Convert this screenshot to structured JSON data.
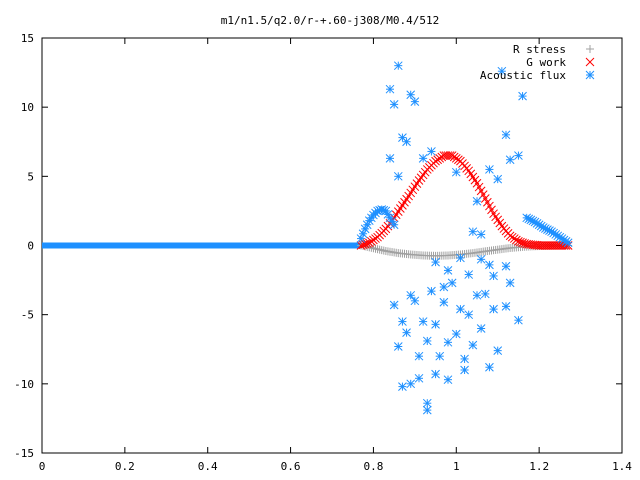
{
  "chart_data": {
    "type": "scatter",
    "title": "m1/n1.5/q2.0/r-+.60-j308/M0.4/512",
    "xlabel": "",
    "ylabel": "",
    "xlim": [
      0,
      1.4
    ],
    "ylim": [
      -15,
      15
    ],
    "x_ticks": [
      "0",
      "0.2",
      "0.4",
      "0.6",
      "0.8",
      "1",
      "1.2",
      "1.4"
    ],
    "y_ticks": [
      "15",
      "10",
      "5",
      "0",
      "-5",
      "-10",
      "-15"
    ],
    "legend_position": "top-right",
    "grid": false,
    "series": [
      {
        "name": "R stress",
        "marker": "plus",
        "color": "#a0a0a0",
        "points": [
          [
            0.77,
            0.0
          ],
          [
            0.8,
            -0.2
          ],
          [
            0.83,
            -0.4
          ],
          [
            0.86,
            -0.55
          ],
          [
            0.89,
            -0.65
          ],
          [
            0.92,
            -0.72
          ],
          [
            0.95,
            -0.75
          ],
          [
            0.98,
            -0.72
          ],
          [
            1.01,
            -0.65
          ],
          [
            1.04,
            -0.55
          ],
          [
            1.07,
            -0.42
          ],
          [
            1.1,
            -0.3
          ],
          [
            1.13,
            -0.18
          ],
          [
            1.16,
            -0.1
          ],
          [
            1.19,
            -0.05
          ],
          [
            1.22,
            -0.02
          ],
          [
            1.25,
            0.0
          ],
          [
            1.27,
            0.0
          ]
        ]
      },
      {
        "name": "G work",
        "marker": "cross",
        "color": "#ff0000",
        "points": [
          [
            0.77,
            0.0
          ],
          [
            0.79,
            0.2
          ],
          [
            0.81,
            0.6
          ],
          [
            0.83,
            1.2
          ],
          [
            0.85,
            2.0
          ],
          [
            0.87,
            2.9
          ],
          [
            0.89,
            3.8
          ],
          [
            0.91,
            4.7
          ],
          [
            0.93,
            5.5
          ],
          [
            0.95,
            6.1
          ],
          [
            0.97,
            6.5
          ],
          [
            0.99,
            6.5
          ],
          [
            1.01,
            6.1
          ],
          [
            1.03,
            5.4
          ],
          [
            1.05,
            4.5
          ],
          [
            1.07,
            3.4
          ],
          [
            1.09,
            2.3
          ],
          [
            1.11,
            1.4
          ],
          [
            1.13,
            0.7
          ],
          [
            1.15,
            0.3
          ],
          [
            1.17,
            0.1
          ],
          [
            1.2,
            0.0
          ],
          [
            1.23,
            0.0
          ],
          [
            1.27,
            0.0
          ]
        ]
      },
      {
        "name": "Acoustic flux",
        "marker": "star",
        "color": "#1e90ff",
        "points": [
          [
            0.77,
            0.5
          ],
          [
            0.78,
            1.2
          ],
          [
            0.79,
            1.8
          ],
          [
            0.8,
            2.2
          ],
          [
            0.81,
            2.5
          ],
          [
            0.82,
            2.6
          ],
          [
            0.83,
            2.5
          ],
          [
            0.84,
            2.0
          ],
          [
            0.85,
            1.5
          ],
          [
            1.17,
            2.0
          ],
          [
            1.19,
            1.7
          ],
          [
            1.21,
            1.3
          ],
          [
            1.23,
            1.0
          ],
          [
            1.25,
            0.6
          ],
          [
            1.27,
            0.2
          ],
          [
            0.84,
            11.3
          ],
          [
            0.85,
            10.2
          ],
          [
            0.86,
            13.0
          ],
          [
            0.87,
            7.8
          ],
          [
            0.88,
            7.5
          ],
          [
            0.89,
            10.9
          ],
          [
            0.9,
            10.4
          ],
          [
            0.84,
            6.3
          ],
          [
            0.86,
            5.0
          ],
          [
            1.0,
            5.3
          ],
          [
            1.08,
            5.5
          ],
          [
            1.11,
            12.6
          ],
          [
            1.12,
            8.0
          ],
          [
            1.13,
            6.2
          ],
          [
            1.16,
            10.8
          ],
          [
            1.15,
            6.5
          ],
          [
            1.1,
            4.8
          ],
          [
            1.05,
            3.2
          ],
          [
            0.94,
            6.8
          ],
          [
            0.92,
            6.3
          ],
          [
            0.85,
            -4.3
          ],
          [
            0.86,
            -7.3
          ],
          [
            0.87,
            -5.5
          ],
          [
            0.88,
            -6.3
          ],
          [
            0.89,
            -3.6
          ],
          [
            0.9,
            -4.0
          ],
          [
            0.91,
            -8.0
          ],
          [
            0.92,
            -5.5
          ],
          [
            0.93,
            -6.9
          ],
          [
            0.94,
            -3.3
          ],
          [
            0.95,
            -5.7
          ],
          [
            0.96,
            -8.0
          ],
          [
            0.97,
            -4.1
          ],
          [
            0.98,
            -7.0
          ],
          [
            0.99,
            -2.7
          ],
          [
            1.0,
            -6.4
          ],
          [
            1.01,
            -4.6
          ],
          [
            1.02,
            -8.2
          ],
          [
            1.03,
            -5.0
          ],
          [
            1.04,
            -7.2
          ],
          [
            1.05,
            -3.6
          ],
          [
            1.06,
            -6.0
          ],
          [
            1.07,
            -3.5
          ],
          [
            1.08,
            -8.8
          ],
          [
            1.09,
            -4.6
          ],
          [
            1.1,
            -7.6
          ],
          [
            1.12,
            -4.4
          ],
          [
            1.13,
            -2.7
          ],
          [
            1.15,
            -5.4
          ],
          [
            0.87,
            -10.2
          ],
          [
            0.89,
            -10.0
          ],
          [
            0.91,
            -9.6
          ],
          [
            0.93,
            -11.9
          ],
          [
            0.93,
            -11.4
          ],
          [
            0.95,
            -9.3
          ],
          [
            0.98,
            -9.7
          ],
          [
            1.02,
            -9.0
          ],
          [
            0.95,
            -1.2
          ],
          [
            0.98,
            -1.8
          ],
          [
            1.01,
            -0.9
          ],
          [
            1.03,
            -2.1
          ],
          [
            1.06,
            -1.0
          ],
          [
            1.09,
            -2.2
          ],
          [
            1.12,
            -1.5
          ],
          [
            0.97,
            -3.0
          ],
          [
            1.04,
            1.0
          ],
          [
            1.06,
            0.8
          ],
          [
            1.08,
            -1.4
          ]
        ]
      }
    ]
  }
}
